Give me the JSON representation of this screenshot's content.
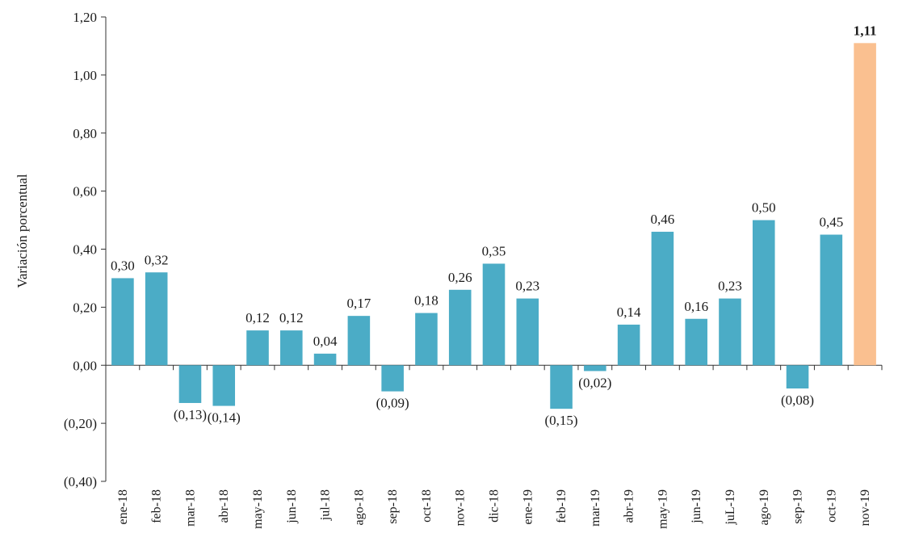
{
  "chart_data": {
    "type": "bar",
    "ylabel": "Variación porcentual",
    "xlabel": "",
    "title": "",
    "ylim": [
      -0.4,
      1.2
    ],
    "yticks": [
      1.2,
      1.0,
      0.8,
      0.6,
      0.4,
      0.2,
      0.0,
      -0.2,
      -0.4
    ],
    "ytick_labels": [
      "1,20",
      "1,00",
      "0,80",
      "0,60",
      "0,40",
      "0,20",
      "0,00",
      "(0,20)",
      "(0,40)"
    ],
    "grid": false,
    "categories": [
      "ene-18",
      "feb-18",
      "mar-18",
      "abr-18",
      "may-18",
      "jun-18",
      "jul-18",
      "ago-18",
      "sep-18",
      "oct-18",
      "nov-18",
      "dic-18",
      "ene-19",
      "feb-19",
      "mar-19",
      "abr-19",
      "may-19",
      "jun-19",
      "juL-19",
      "ago-19",
      "sep-19",
      "oct-19",
      "nov-19"
    ],
    "values": [
      0.3,
      0.32,
      -0.13,
      -0.14,
      0.12,
      0.12,
      0.04,
      0.17,
      -0.09,
      0.18,
      0.26,
      0.35,
      0.23,
      -0.15,
      -0.02,
      0.14,
      0.46,
      0.16,
      0.23,
      0.5,
      -0.08,
      0.45,
      1.11
    ],
    "value_labels": [
      "0,30",
      "0,32",
      "(0,13)",
      "(0,14)",
      "0,12",
      "0,12",
      "0,04",
      "0,17",
      "(0,09)",
      "0,18",
      "0,26",
      "0,35",
      "0,23",
      "(0,15)",
      "(0,02)",
      "0,14",
      "0,46",
      "0,16",
      "0,23",
      "0,50",
      "(0,08)",
      "0,45",
      "1,11"
    ],
    "colors": {
      "bar": "#4bacc6",
      "highlight": "#fac090",
      "text": "#1a1a1a",
      "axis": "#333333"
    },
    "highlight_index": 22
  }
}
